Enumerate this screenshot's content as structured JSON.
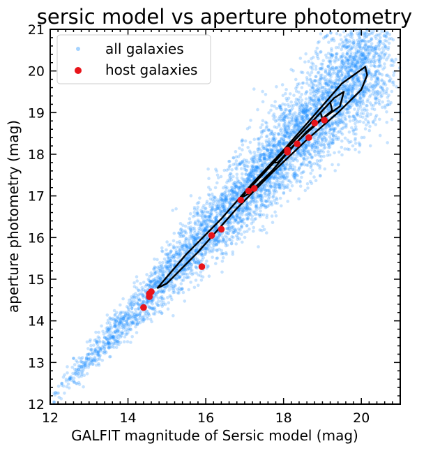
{
  "chart_data": {
    "type": "scatter",
    "title": "sersic model vs aperture photometry",
    "xlabel": "GALFIT magnitude of Sersic model (mag)",
    "ylabel": "aperture photometry (mag)",
    "xlim": [
      12,
      21
    ],
    "ylim": [
      12,
      21
    ],
    "xticks": [
      "12",
      "14",
      "16",
      "18",
      "20"
    ],
    "yticks": [
      "12",
      "13",
      "14",
      "15",
      "16",
      "17",
      "18",
      "19",
      "20",
      "21"
    ],
    "grid": false,
    "legend_position": "upper-left",
    "series": [
      {
        "name": "all galaxies",
        "color": "#1e90ff",
        "alpha": 0.25,
        "marker": "circle-small",
        "description_of_values": "dense cloud of several thousand galaxies concentrated along the 1:1 relation, broader at faint magnitudes",
        "values": [
          [
            12.1,
            12.05
          ],
          [
            12.3,
            12.5
          ],
          [
            12.5,
            12.6
          ],
          [
            12.6,
            13.1
          ],
          [
            12.8,
            12.9
          ],
          [
            13.0,
            13.2
          ],
          [
            13.2,
            13.5
          ],
          [
            13.4,
            13.6
          ],
          [
            13.5,
            13.8
          ],
          [
            13.7,
            14.0
          ],
          [
            13.9,
            14.1
          ],
          [
            14.1,
            14.3
          ],
          [
            14.3,
            14.5
          ],
          [
            14.5,
            14.6
          ],
          [
            14.7,
            14.9
          ],
          [
            14.9,
            15.1
          ],
          [
            15.1,
            15.3
          ],
          [
            15.3,
            15.6
          ],
          [
            15.5,
            15.8
          ],
          [
            15.7,
            16.0
          ],
          [
            15.9,
            16.3
          ],
          [
            16.1,
            16.5
          ],
          [
            16.3,
            16.7
          ],
          [
            16.5,
            16.9
          ],
          [
            16.7,
            17.1
          ],
          [
            16.9,
            17.3
          ],
          [
            17.1,
            17.5
          ],
          [
            17.3,
            17.7
          ],
          [
            17.5,
            17.9
          ],
          [
            17.7,
            18.1
          ],
          [
            17.9,
            18.3
          ],
          [
            18.1,
            18.5
          ],
          [
            18.3,
            18.7
          ],
          [
            18.5,
            18.9
          ],
          [
            18.7,
            19.1
          ],
          [
            18.9,
            19.3
          ],
          [
            19.1,
            19.5
          ],
          [
            19.3,
            19.7
          ],
          [
            19.5,
            19.9
          ],
          [
            19.7,
            20.1
          ],
          [
            19.9,
            20.2
          ],
          [
            20.1,
            20.3
          ]
        ]
      },
      {
        "name": "host galaxies",
        "color": "#e8141a",
        "marker": "circle",
        "x": [
          14.4,
          14.55,
          14.55,
          14.6,
          15.9,
          16.15,
          16.4,
          16.9,
          17.1,
          17.25,
          18.1,
          18.1,
          18.35,
          18.65,
          18.8,
          19.05
        ],
        "y": [
          14.32,
          14.58,
          14.65,
          14.7,
          15.3,
          16.05,
          16.2,
          16.9,
          17.12,
          17.18,
          18.05,
          18.1,
          18.25,
          18.4,
          18.75,
          18.82
        ]
      }
    ],
    "contours": [
      {
        "color": "#000000",
        "level": "outer",
        "path": [
          [
            14.75,
            14.78
          ],
          [
            15.5,
            15.6
          ],
          [
            16.4,
            16.45
          ],
          [
            17.2,
            17.3
          ],
          [
            18.0,
            18.1
          ],
          [
            18.8,
            18.95
          ],
          [
            19.5,
            19.7
          ],
          [
            20.1,
            20.1
          ],
          [
            20.15,
            19.9
          ],
          [
            20.0,
            19.55
          ],
          [
            19.4,
            19.0
          ],
          [
            18.6,
            18.35
          ],
          [
            17.7,
            17.55
          ],
          [
            16.8,
            16.7
          ],
          [
            15.8,
            15.65
          ],
          [
            15.0,
            14.9
          ],
          [
            14.75,
            14.78
          ]
        ]
      },
      {
        "color": "#000000",
        "level": "middle",
        "path": [
          [
            16.9,
            16.95
          ],
          [
            17.5,
            17.55
          ],
          [
            18.1,
            18.15
          ],
          [
            18.7,
            18.75
          ],
          [
            19.3,
            19.35
          ],
          [
            19.55,
            19.5
          ],
          [
            19.45,
            19.15
          ],
          [
            19.0,
            18.85
          ],
          [
            18.4,
            18.35
          ],
          [
            17.7,
            17.6
          ],
          [
            17.1,
            17.05
          ],
          [
            16.9,
            16.95
          ]
        ]
      },
      {
        "color": "#000000",
        "level": "inner",
        "path": [
          [
            17.75,
            17.8
          ],
          [
            18.2,
            18.25
          ],
          [
            18.7,
            18.75
          ],
          [
            19.2,
            19.25
          ],
          [
            19.25,
            19.05
          ],
          [
            18.85,
            18.75
          ],
          [
            18.35,
            18.3
          ],
          [
            17.85,
            17.8
          ],
          [
            17.75,
            17.8
          ]
        ]
      },
      {
        "color": "#000000",
        "level": "innermost",
        "path": [
          [
            18.1,
            18.15
          ],
          [
            18.5,
            18.55
          ],
          [
            18.95,
            19.0
          ],
          [
            19.0,
            18.85
          ],
          [
            18.6,
            18.55
          ],
          [
            18.2,
            18.15
          ],
          [
            18.1,
            18.15
          ]
        ]
      }
    ]
  }
}
